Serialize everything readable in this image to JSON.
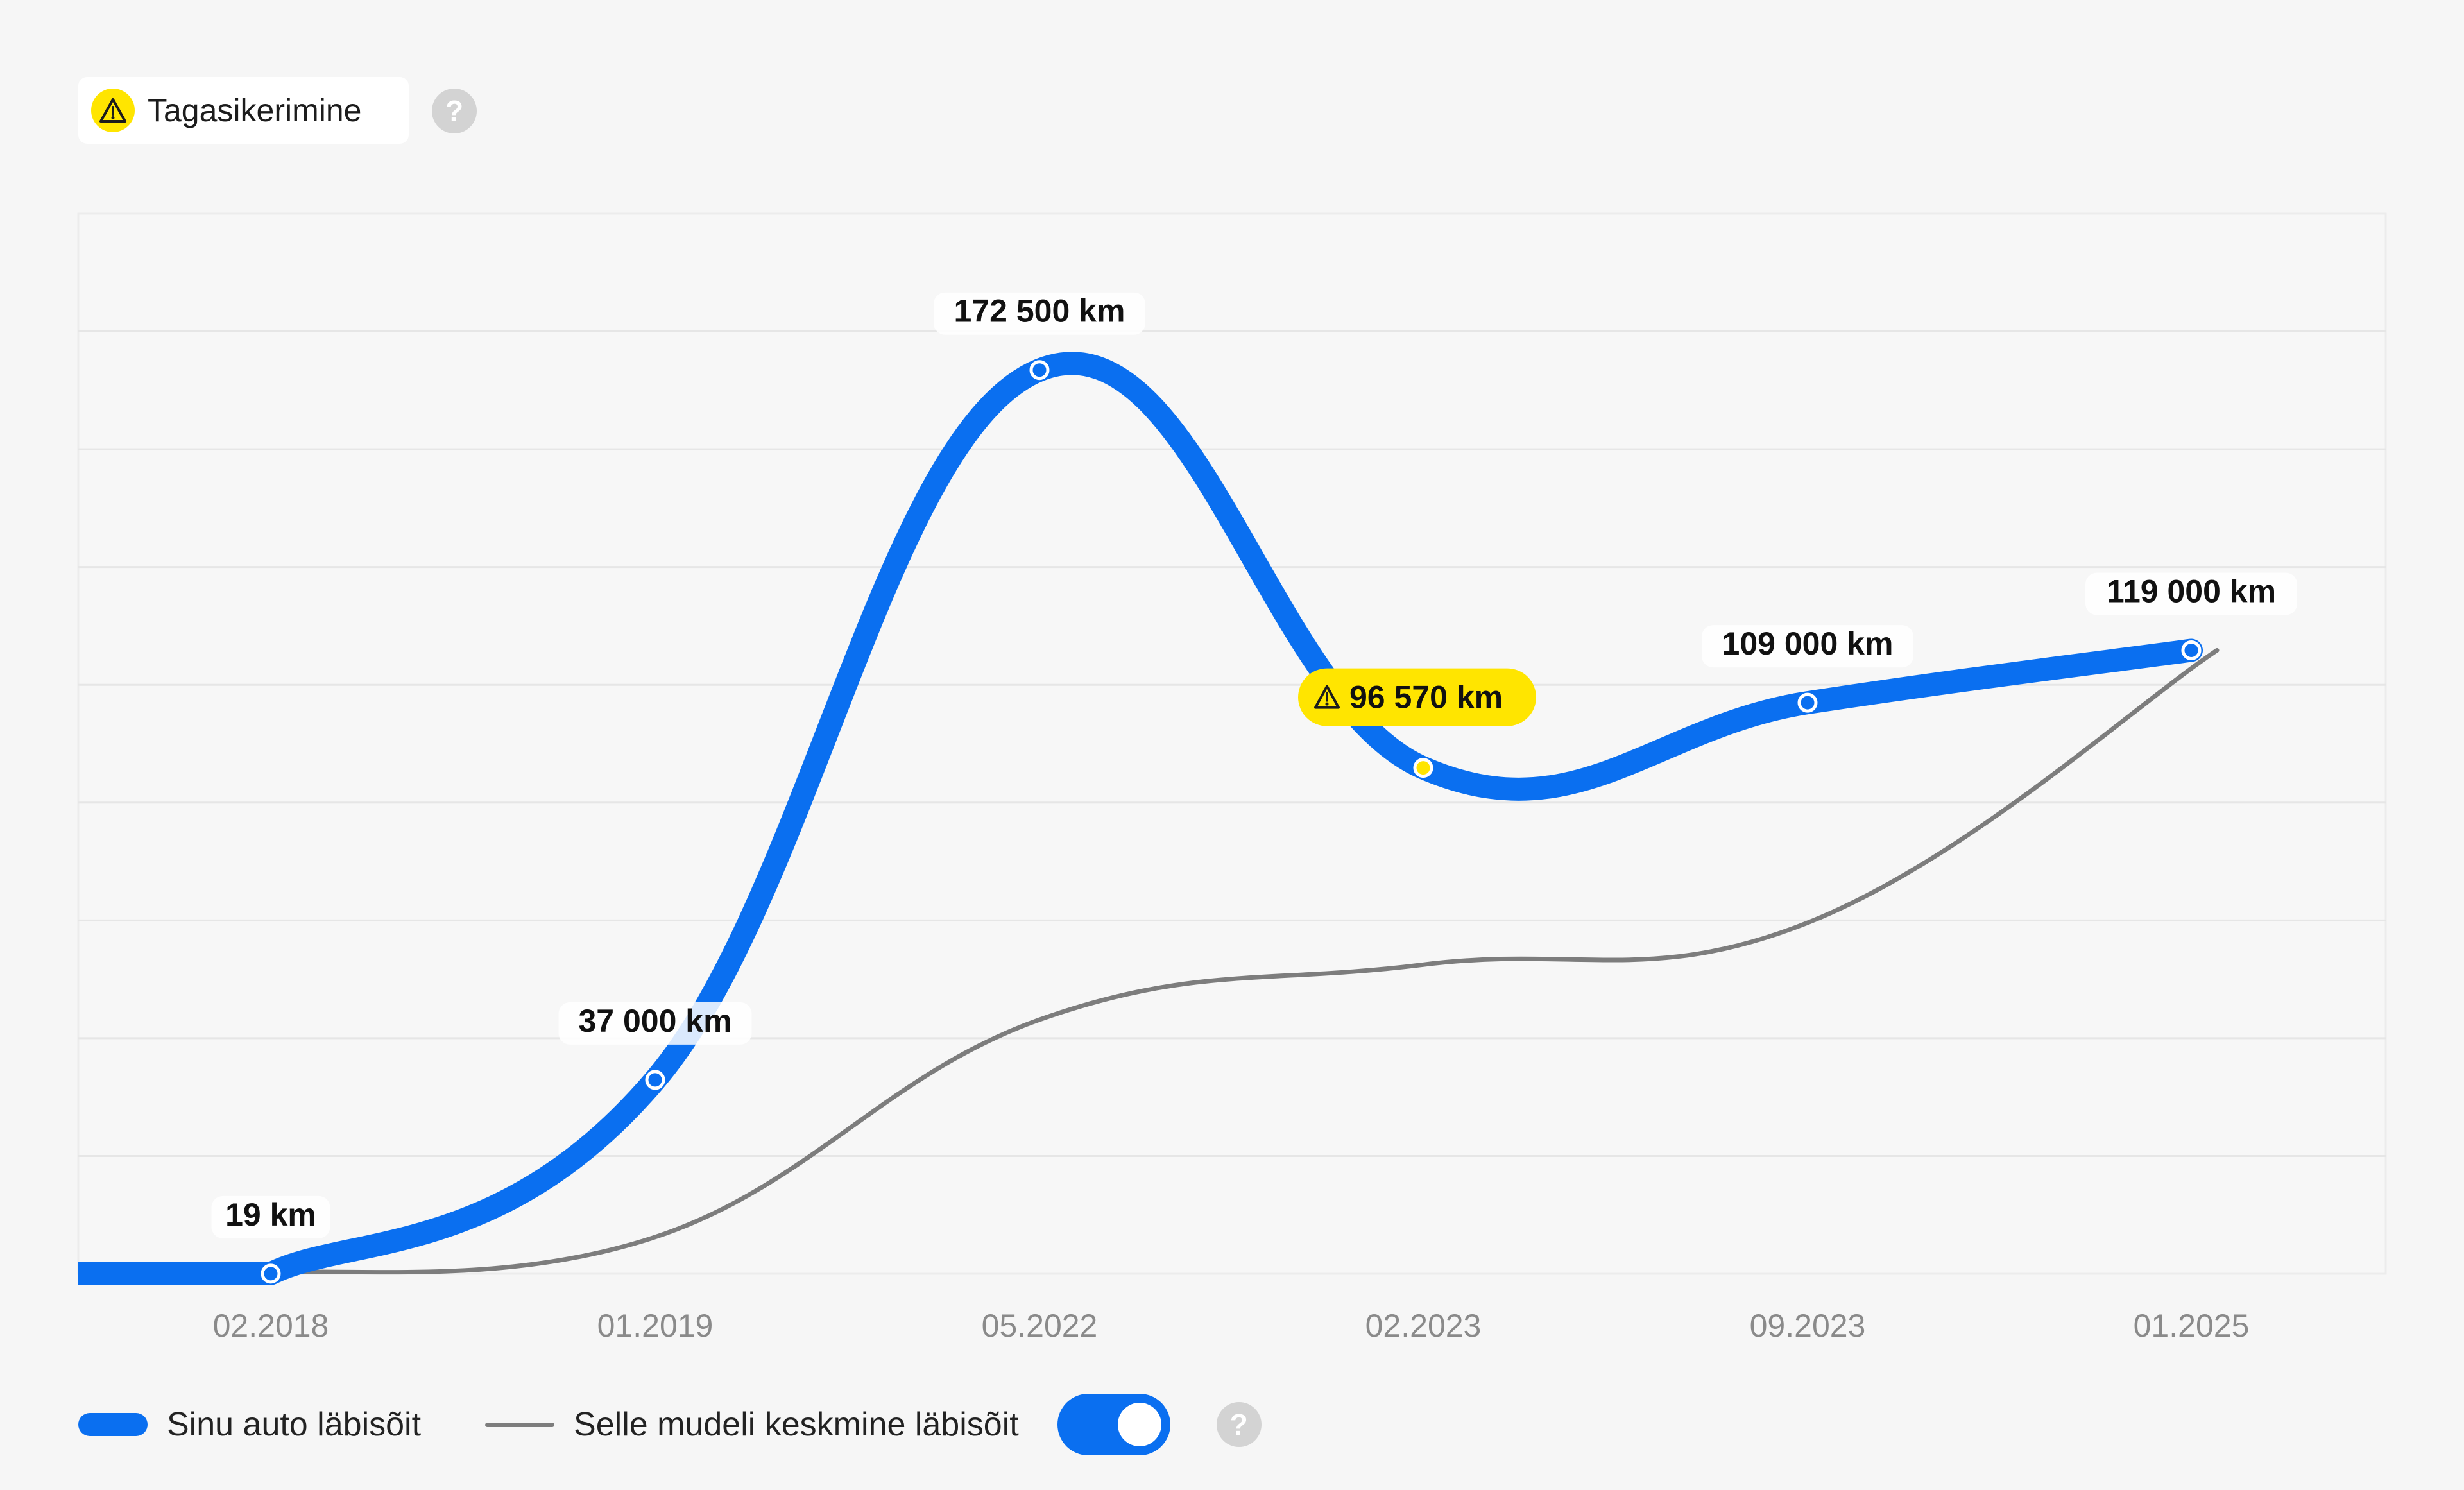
{
  "header": {
    "warning_badge_label": "Tagasikerimine",
    "help_symbol": "?"
  },
  "chart_data": {
    "type": "line",
    "categories": [
      "02.2018",
      "01.2019",
      "05.2022",
      "02.2023",
      "09.2023",
      "01.2025"
    ],
    "series": [
      {
        "name": "Sinu auto läbisõit",
        "values": [
          19,
          37000,
          172500,
          96570,
          109000,
          119000
        ],
        "labels": [
          "19 km",
          "37 000 km",
          "172 500 km",
          "96 570 km",
          "109 000 km",
          "119 000 km"
        ],
        "color": "#0a6ff0",
        "flagged_index": 3
      },
      {
        "name": "Selle mudeli keskmine läbisõit",
        "values": [
          19,
          7000,
          48500,
          59000,
          67000,
          119000
        ],
        "color": "#7d7d7d"
      }
    ],
    "ylim": [
      0,
      195000
    ],
    "grid": true,
    "legend": "bottom"
  },
  "legend": {
    "own_label": "Sinu auto läbisõit",
    "avg_label": "Selle mudeli keskmine läbisõit",
    "avg_toggle_on": true
  },
  "colors": {
    "accent": "#0a6ff0",
    "warning": "#ffe500",
    "average_line": "#7d7d7d"
  },
  "icons": [
    "warning-triangle-icon",
    "help-icon"
  ]
}
